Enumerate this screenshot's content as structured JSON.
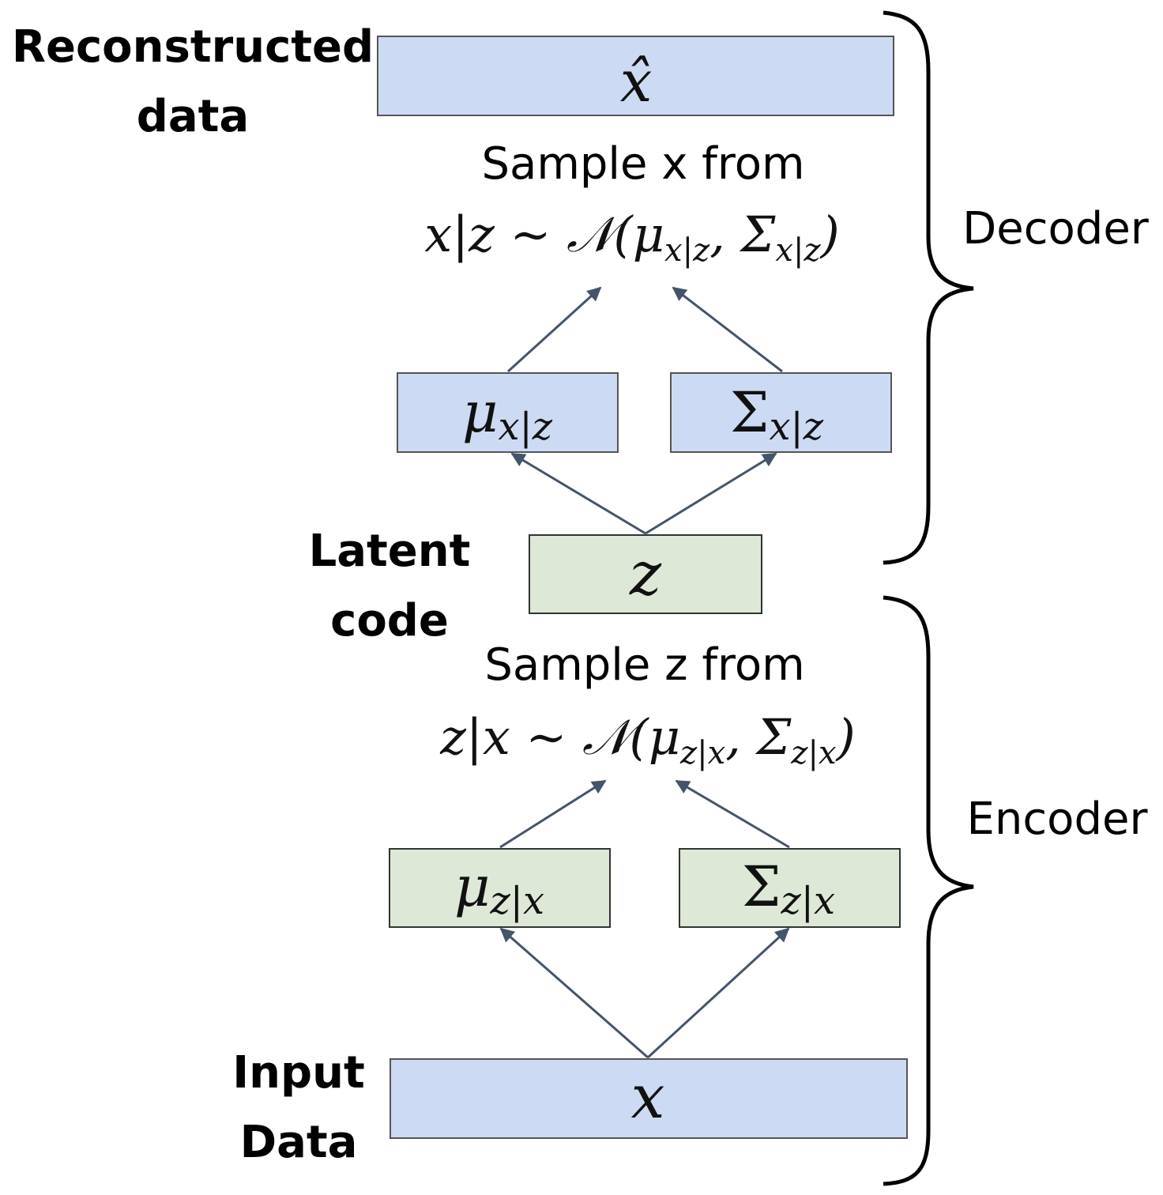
{
  "labels": {
    "reconstructed": [
      "Reconstructed",
      "data"
    ],
    "latent": [
      "Latent",
      "code"
    ],
    "input": [
      "Input",
      "Data"
    ],
    "decoder": "Decoder",
    "encoder": "Encoder",
    "sample_x": "Sample x from",
    "sample_z": "Sample z from"
  },
  "boxes": {
    "x_hat": "x̂",
    "mu_x_given_z": {
      "main": "μ",
      "sub": "x|z"
    },
    "sigma_x_given_z": {
      "main": "Σ",
      "sub": "x|z"
    },
    "z": "z",
    "mu_z_given_x": {
      "main": "μ",
      "sub": "z|x"
    },
    "sigma_z_given_x": {
      "main": "Σ",
      "sub": "z|x"
    },
    "x": "x"
  },
  "formulas": {
    "decoder": {
      "lhs": "x|z ∼ 𝒩(μ",
      "sub1": "x|z",
      "mid": ", Σ",
      "sub2": "x|z",
      "end": ")"
    },
    "encoder": {
      "lhs": "z|x ∼ 𝒩(μ",
      "sub1": "z|x",
      "mid": ", Σ",
      "sub2": "z|x",
      "end": ")"
    }
  },
  "colors": {
    "decoder_box": "#cddaf3",
    "encoder_box": "#dde8d6",
    "arrow": "#44546a"
  }
}
